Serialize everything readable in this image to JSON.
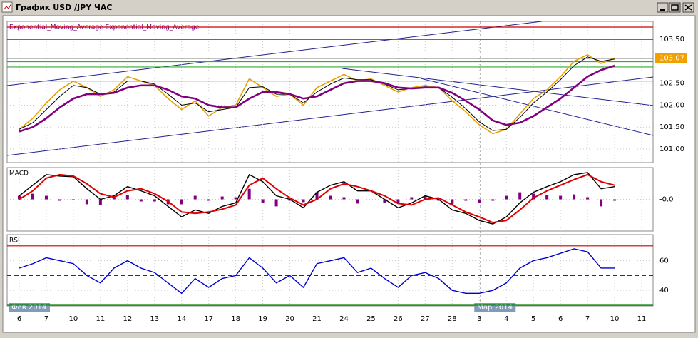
{
  "window": {
    "title": "График USD /JPY ЧАС",
    "month_labels": [
      "Фев 2014",
      "Мар 2014"
    ]
  },
  "chart_data": [
    {
      "type": "line",
      "title": "Exponential_Moving_Average Exponential_Moving_Average",
      "categories": [
        "6",
        null,
        "7",
        null,
        "10",
        null,
        "11",
        null,
        "12",
        null,
        "13",
        null,
        "14",
        null,
        "17",
        null,
        "18",
        null,
        "19",
        null,
        "20",
        null,
        "21",
        null,
        "24",
        null,
        "25",
        null,
        "26",
        null,
        "27",
        null,
        "28",
        null,
        "3",
        null,
        "4",
        null,
        "5",
        null,
        "6",
        null,
        "7",
        null,
        "10",
        null,
        "11"
      ],
      "series": [
        {
          "color": "#e8a000",
          "values": [
            101.45,
            101.7,
            102.05,
            102.35,
            102.55,
            102.4,
            102.2,
            102.35,
            102.65,
            102.55,
            102.45,
            102.15,
            101.9,
            102.1,
            101.75,
            101.95,
            102.0,
            102.6,
            102.4,
            102.2,
            102.25,
            102.0,
            102.4,
            102.55,
            102.7,
            102.55,
            102.6,
            102.45,
            102.3,
            102.4,
            102.45,
            102.4,
            102.1,
            101.85,
            101.55,
            101.35,
            101.45,
            101.8,
            102.15,
            102.35,
            102.65,
            103.0,
            103.15,
            102.95,
            103.07,
            null,
            null
          ]
        },
        {
          "color": "#000000",
          "values": [
            101.45,
            101.6,
            101.9,
            102.2,
            102.45,
            102.4,
            102.25,
            102.3,
            102.55,
            102.55,
            102.48,
            102.25,
            102.0,
            102.05,
            101.85,
            101.9,
            101.95,
            102.4,
            102.42,
            102.25,
            102.25,
            102.05,
            102.3,
            102.48,
            102.62,
            102.58,
            102.58,
            102.48,
            102.35,
            102.38,
            102.42,
            102.4,
            102.18,
            101.92,
            101.62,
            101.42,
            101.45,
            101.72,
            102.05,
            102.3,
            102.58,
            102.9,
            103.1,
            103.0,
            103.05,
            null,
            null
          ]
        },
        {
          "color": "#800080",
          "values": [
            101.4,
            101.5,
            101.7,
            101.95,
            102.15,
            102.25,
            102.25,
            102.28,
            102.4,
            102.45,
            102.45,
            102.35,
            102.2,
            102.15,
            102.0,
            101.95,
            101.95,
            102.15,
            102.3,
            102.3,
            102.25,
            102.15,
            102.2,
            102.35,
            102.5,
            102.55,
            102.55,
            102.5,
            102.4,
            102.38,
            102.4,
            102.4,
            102.28,
            102.1,
            101.9,
            101.65,
            101.55,
            101.6,
            101.75,
            101.95,
            102.15,
            102.4,
            102.65,
            102.8,
            102.9,
            null,
            null
          ]
        }
      ],
      "ylim": [
        100.69,
        103.91
      ],
      "yticks": [
        {
          "value": 101,
          "label": "101.00"
        },
        {
          "value": 101.5,
          "label": "101.50"
        },
        {
          "value": 102,
          "label": "102.00"
        },
        {
          "value": 102.5,
          "label": "102.50"
        },
        {
          "value": 103,
          "label": "103.00"
        },
        {
          "value": 103.5,
          "label": "103.50"
        }
      ],
      "levels": [
        {
          "value": 103.78,
          "color": "#cc0000"
        },
        {
          "value": 103.5,
          "color": "#cc0000"
        },
        {
          "value": 103.07,
          "color": "#000000"
        },
        {
          "value": 102.99,
          "color": "#33aa33"
        },
        {
          "value": 102.87,
          "color": "#33aa33"
        },
        {
          "value": 102.55,
          "color": "#33aa33"
        }
      ],
      "current_price": 103.07,
      "grid": true
    },
    {
      "type": "macd",
      "title": "MACD",
      "histogram": {
        "color": "#800080",
        "values": [
          0.05,
          0.08,
          0.05,
          -0.02,
          -0.01,
          -0.07,
          -0.08,
          0.02,
          0.06,
          -0.03,
          -0.03,
          -0.07,
          -0.07,
          0.05,
          -0.02,
          0.04,
          0.03,
          0.15,
          -0.05,
          -0.1,
          -0.02,
          -0.04,
          0.1,
          0.05,
          0.03,
          -0.06,
          0.0,
          -0.05,
          -0.06,
          0.03,
          0.05,
          -0.02,
          -0.07,
          -0.02,
          -0.05,
          -0.02,
          0.05,
          0.1,
          0.08,
          0.06,
          0.05,
          0.07,
          0.03,
          -0.1,
          -0.02,
          null,
          null
        ]
      },
      "series": [
        {
          "color": "#000000",
          "values": [
            0.05,
            0.2,
            0.35,
            0.33,
            0.32,
            0.15,
            0.0,
            0.05,
            0.18,
            0.12,
            0.05,
            -0.1,
            -0.25,
            -0.15,
            -0.2,
            -0.1,
            -0.05,
            0.35,
            0.25,
            0.05,
            0.0,
            -0.12,
            0.1,
            0.2,
            0.25,
            0.12,
            0.12,
            0.0,
            -0.12,
            -0.05,
            0.05,
            0.0,
            -0.15,
            -0.2,
            -0.3,
            -0.35,
            -0.25,
            -0.05,
            0.1,
            0.18,
            0.25,
            0.35,
            0.38,
            0.15,
            0.18,
            null,
            null
          ]
        },
        {
          "color": "#dd0000",
          "values": [
            0.0,
            0.12,
            0.3,
            0.35,
            0.33,
            0.22,
            0.08,
            0.03,
            0.12,
            0.15,
            0.08,
            -0.03,
            -0.18,
            -0.2,
            -0.18,
            -0.14,
            -0.08,
            0.2,
            0.3,
            0.15,
            0.02,
            -0.08,
            0.0,
            0.15,
            0.22,
            0.18,
            0.12,
            0.05,
            -0.06,
            -0.08,
            0.0,
            0.02,
            -0.08,
            -0.18,
            -0.25,
            -0.33,
            -0.3,
            -0.15,
            0.02,
            0.12,
            0.2,
            0.28,
            0.35,
            0.25,
            0.2,
            null,
            null
          ]
        }
      ],
      "ylim": [
        -0.45,
        0.45
      ],
      "yticks": [
        {
          "value": 0,
          "label": "-0.0"
        }
      ],
      "grid": true
    },
    {
      "type": "line",
      "title": "RSI",
      "series": [
        {
          "color": "#0000cc",
          "values": [
            55,
            58,
            62,
            60,
            58,
            50,
            45,
            55,
            60,
            55,
            52,
            45,
            38,
            48,
            42,
            48,
            50,
            62,
            55,
            45,
            50,
            42,
            58,
            60,
            62,
            52,
            55,
            48,
            42,
            50,
            52,
            48,
            40,
            38,
            38,
            40,
            45,
            55,
            60,
            62,
            65,
            68,
            66,
            55,
            55,
            null,
            null
          ]
        }
      ],
      "ylim": [
        29.5,
        77.6
      ],
      "yticks": [
        40,
        60
      ],
      "levels": [
        {
          "value": 70,
          "color": "#cc0000"
        },
        {
          "value": 50,
          "color": "#800080"
        },
        {
          "value": 30,
          "color": "#008000"
        }
      ],
      "grid": true
    }
  ]
}
